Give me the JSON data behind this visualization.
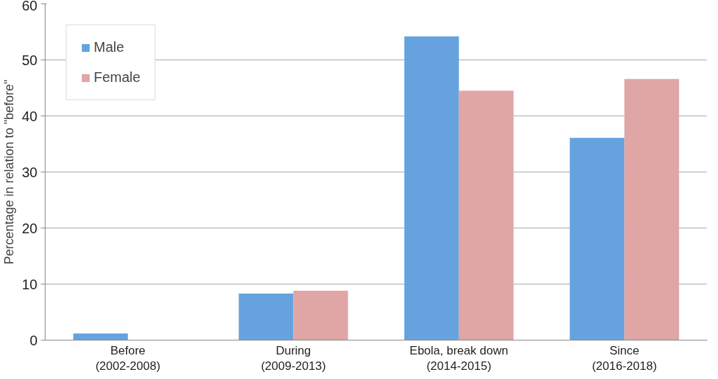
{
  "chart_data": {
    "type": "bar",
    "ylabel": "Percentage in relation to \"before\"",
    "categories": [
      "Before\n(2002-2008)",
      "During\n(2009-2013)",
      "Ebola, break down\n(2014-2015)",
      "Since\n(2016-2018)"
    ],
    "series": [
      {
        "name": "Male",
        "color": "#66a3de",
        "values": [
          1.2,
          8.3,
          54.2,
          36.1
        ]
      },
      {
        "name": "Female",
        "color": "#e0a5a5",
        "values": [
          0,
          8.8,
          44.5,
          46.6
        ]
      }
    ],
    "ylim": [
      0,
      60
    ],
    "yticks": [
      0,
      10,
      20,
      30,
      40,
      50,
      60
    ],
    "grid": "y",
    "legend": "top left"
  }
}
